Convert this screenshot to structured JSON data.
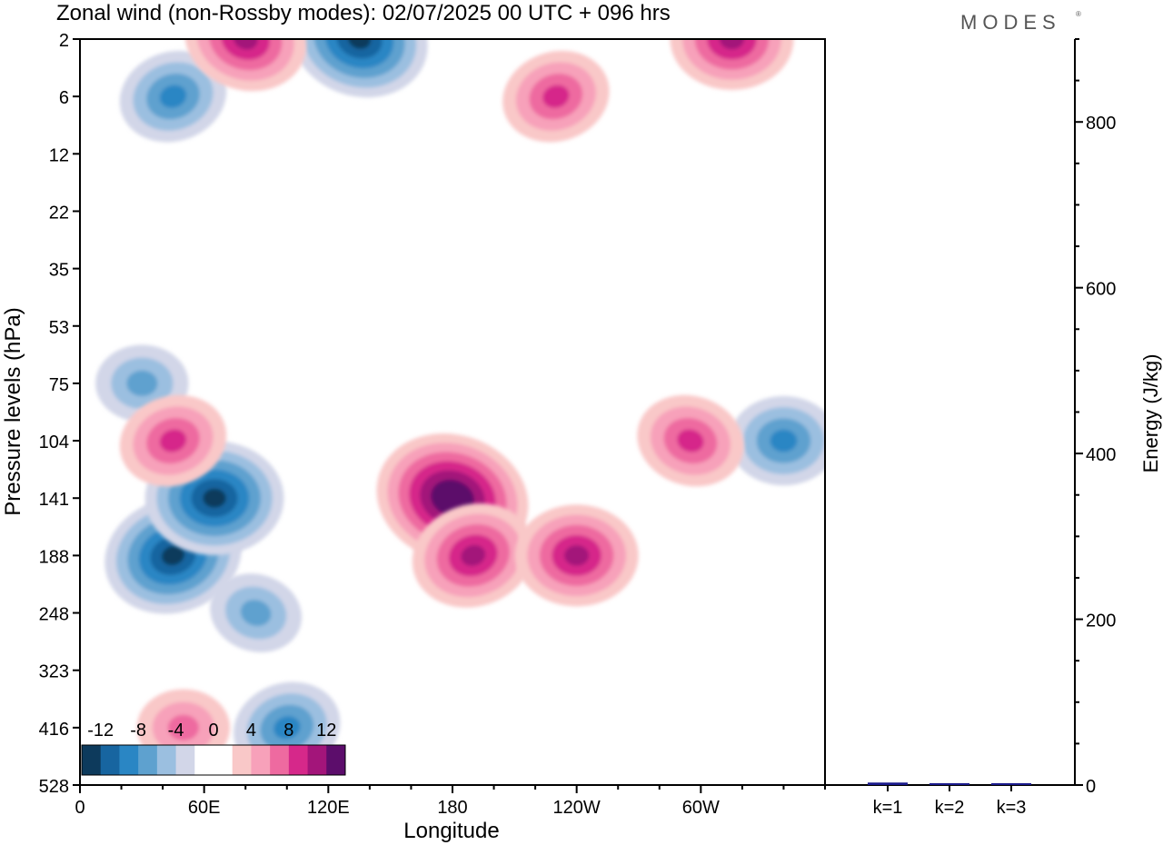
{
  "title": "Zonal wind (non-Rossby modes):  02/07/2025  00 UTC  + 096 hrs",
  "logo_text": "MODES",
  "chart_data": [
    {
      "type": "heatmap",
      "title": "Zonal wind (non-Rossby modes):  02/07/2025  00 UTC  + 096 hrs",
      "xlabel": "Longitude",
      "ylabel": "Pressure levels (hPa)",
      "x_ticks": [
        "0",
        "60E",
        "120E",
        "180",
        "120W",
        "60W"
      ],
      "x_tick_lons": [
        0,
        60,
        120,
        180,
        240,
        300
      ],
      "xlim": [
        0,
        360
      ],
      "y_ticks": [
        "2",
        "6",
        "12",
        "22",
        "35",
        "53",
        "75",
        "104",
        "141",
        "188",
        "248",
        "323",
        "416",
        "528"
      ],
      "colorbar": {
        "tick_labels": [
          "-12",
          "-8",
          "-4",
          "0",
          "4",
          "8",
          "12"
        ],
        "colors": [
          "#0d3a5c",
          "#1765a0",
          "#2a86c4",
          "#5ea1cf",
          "#9bbfe0",
          "#d2d6e8",
          "#ffffff",
          "#ffffff",
          "#f9c8c8",
          "#f7a1ba",
          "#ee6aa0",
          "#d6288a",
          "#a3157a",
          "#5c0d6b"
        ]
      },
      "features": [
        {
          "sign": "negative",
          "lon": 45,
          "level": "188",
          "peak": -12
        },
        {
          "sign": "negative",
          "lon": 65,
          "level": "141",
          "peak": -12
        },
        {
          "sign": "negative",
          "lon": 85,
          "level": "248",
          "peak": -6
        },
        {
          "sign": "negative",
          "lon": 100,
          "level": "416",
          "peak": -8
        },
        {
          "sign": "negative",
          "lon": 30,
          "level": "75",
          "peak": -6
        },
        {
          "sign": "negative",
          "lon": 135,
          "level": "2",
          "peak": -12
        },
        {
          "sign": "negative",
          "lon": 45,
          "level": "6",
          "peak": -8
        },
        {
          "sign": "negative",
          "lon": 340,
          "level": "104",
          "peak": -8
        },
        {
          "sign": "positive",
          "lon": 180,
          "level": "141",
          "peak": 14
        },
        {
          "sign": "positive",
          "lon": 190,
          "level": "188",
          "peak": 10
        },
        {
          "sign": "positive",
          "lon": 240,
          "level": "188",
          "peak": 10
        },
        {
          "sign": "positive",
          "lon": 295,
          "level": "104",
          "peak": 8
        },
        {
          "sign": "positive",
          "lon": 45,
          "level": "104",
          "peak": 8
        },
        {
          "sign": "positive",
          "lon": 50,
          "level": "416",
          "peak": 6
        },
        {
          "sign": "positive",
          "lon": 80,
          "level": "2",
          "peak": 10
        },
        {
          "sign": "positive",
          "lon": 230,
          "level": "6",
          "peak": 8
        },
        {
          "sign": "positive",
          "lon": 315,
          "level": "2",
          "peak": 10
        }
      ]
    },
    {
      "type": "bar",
      "ylabel": "Energy (J/kg)",
      "ylim": [
        0,
        900
      ],
      "y_ticks": [
        0,
        200,
        400,
        600,
        800
      ],
      "categories": [
        "k=1",
        "k=2",
        "k=3"
      ],
      "values": [
        3,
        1,
        1
      ],
      "bar_color": "#1a1a8c"
    }
  ]
}
